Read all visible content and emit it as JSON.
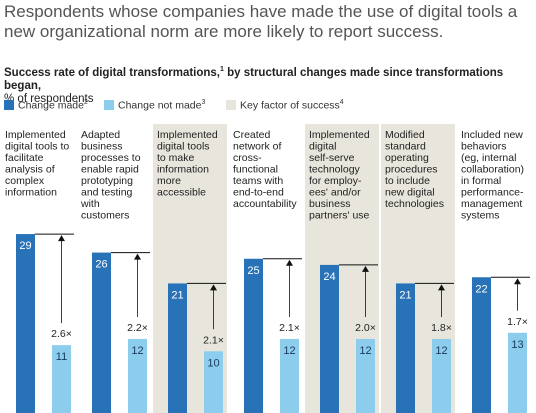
{
  "headline": "Respondents whose companies have made the use of digital tools a new organizational norm are more likely to report success.",
  "subtitle": {
    "title": "Success rate of digital transformations,",
    "title_note": "1",
    "title_rest": " by structural changes made since transformations began,",
    "unit": "% of respondents"
  },
  "colors": {
    "change_made": "#2872b8",
    "change_not_made": "#8ccdee",
    "key_factor": "#e8e5dc",
    "arrow": "#111111",
    "bar_label_dark": "#ffffff",
    "bar_label_light": "#1a3a5c"
  },
  "legend": [
    {
      "key": "change_made",
      "label": "Change made",
      "note": "2"
    },
    {
      "key": "change_not_made",
      "label": "Change not made",
      "note": "3"
    },
    {
      "key": "key_factor",
      "label": "Key factor of success",
      "note": "4"
    }
  ],
  "chart_data": {
    "type": "bar",
    "title": "Success rate of digital transformations, by structural changes made since transformations began",
    "ylabel": "% of respondents",
    "ylim": [
      0,
      31
    ],
    "categories": [
      "Implemented digital tools to facilitate analysis of complex information",
      "Adapted business processes to enable rapid prototyping and testing with customers",
      "Implemented digital tools to make information more accessible",
      "Created network of cross-functional teams with end-to-end accountability",
      "Implemented digital self-serve technology for employees' and/or business partners' use",
      "Modified standard operating procedures to include new digital technologies",
      "Included new behaviors (eg, internal collaboration) in formal performance-management systems"
    ],
    "category_lines": [
      [
        "Implemented",
        "digital tools to",
        "facilitate",
        "analysis of",
        "complex",
        "information"
      ],
      [
        "Adapted",
        "business",
        "processes to",
        "enable rapid",
        "prototyping",
        "and testing",
        "with",
        "customers"
      ],
      [
        "Implemented",
        "digital tools",
        "to make",
        "information",
        "more",
        "accessible"
      ],
      [
        "Created",
        "network of",
        "cross-",
        "functional",
        "teams with",
        "end-to-end",
        "accountability"
      ],
      [
        "Implemented",
        "digital",
        "self-serve",
        "technology",
        "for employ-",
        "ees' and/or",
        "business",
        "partners' use"
      ],
      [
        "Modified",
        "standard",
        "operating",
        "procedures",
        "to include",
        "new digital",
        "technologies"
      ],
      [
        "Included new",
        "behaviors",
        "(eg, internal",
        "collaboration)",
        "in formal",
        "performance-",
        "management",
        "systems"
      ]
    ],
    "key_factor": [
      false,
      false,
      true,
      false,
      true,
      true,
      false
    ],
    "series": [
      {
        "name": "Change made",
        "values": [
          29,
          26,
          21,
          25,
          24,
          21,
          22
        ]
      },
      {
        "name": "Change not made",
        "values": [
          11,
          12,
          10,
          12,
          12,
          12,
          13
        ]
      }
    ],
    "multipliers": [
      "2.6×",
      "2.2×",
      "2.1×",
      "2.1×",
      "2.0×",
      "1.8×",
      "1.7×"
    ]
  }
}
